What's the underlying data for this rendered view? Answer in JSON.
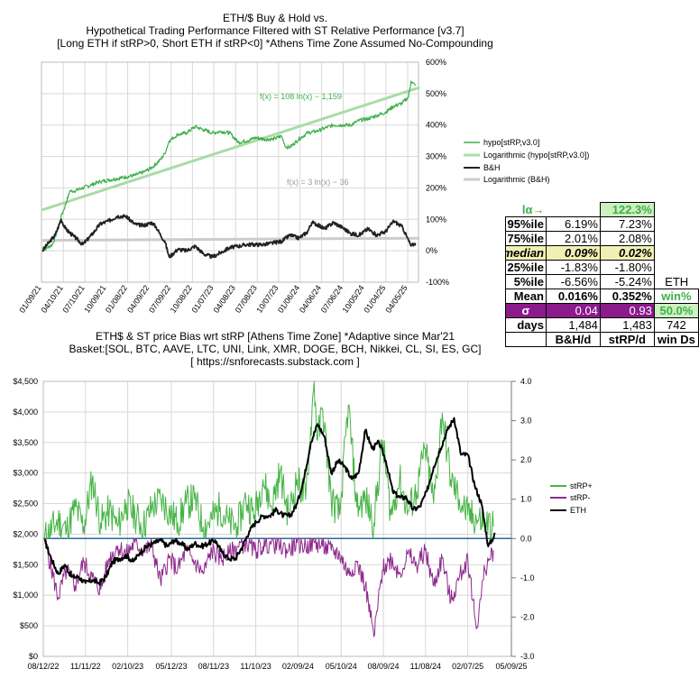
{
  "top_title": {
    "line1": "ETH/$ Buy & Hold vs.",
    "line2": "Hypothetical Trading Performance Filtered with ST Relative Performance [v3.7]",
    "line3": "[Long ETH if stRP>0, Short ETH if stRP<0] *Athens Time Zone Assumed No-Compounding"
  },
  "bottom_title": {
    "line1": "ETH$ & ST price Bias wrt stRP [Athens Time Zone]  *Adaptive since Mar'21",
    "line2": "Basket:[SOL, BTC, AAVE, LTC, UNI, Link, XMR, DOGE, BCH, Nikkei, CL, SI, ES, GC]",
    "line3": "[ https://snforecasts.substack.com ]"
  },
  "colors": {
    "hypo": "#3cb04a",
    "hypo_trend": "#a8dca8",
    "bh": "#222222",
    "bh_trend": "#cccccc",
    "strp_plus": "#46b446",
    "strp_minus": "#8e2a8e",
    "eth": "#000000",
    "zero_line": "#2a6b9a",
    "grid": "#d8d8d8"
  },
  "chart_data": [
    {
      "type": "line",
      "title": "Hypothetical Trading Performance vs ETH Buy & Hold",
      "x_tick_labels": [
        "01/09/21",
        "04/10/21",
        "07/10/21",
        "10/09/21",
        "01/08/22",
        "04/09/22",
        "07/09/22",
        "10/08/22",
        "01/07/23",
        "04/08/23",
        "07/08/23",
        "10/07/23",
        "01/06/24",
        "04/06/24",
        "07/06/24",
        "10/05/24",
        "01/04/25",
        "04/05/25"
      ],
      "y_tick_labels": [
        "600%",
        "500%",
        "400%",
        "300%",
        "200%",
        "100%",
        "0%",
        "-100%"
      ],
      "ylim": [
        -100,
        600
      ],
      "x_range": [
        "01/09/21",
        "05/20/25"
      ],
      "y_unit": "%",
      "series": [
        {
          "name": "hypo[stRP,v3.0]",
          "x_years": [
            2021.03,
            2021.15,
            2021.2,
            2021.25,
            2021.28,
            2021.35,
            2021.4,
            2021.5,
            2021.6,
            2021.7,
            2021.8,
            2021.9,
            2022.0,
            2022.1,
            2022.2,
            2022.3,
            2022.4,
            2022.45,
            2022.5,
            2022.55,
            2022.6,
            2022.7,
            2022.8,
            2022.9,
            2023.0,
            2023.1,
            2023.2,
            2023.3,
            2023.4,
            2023.5,
            2023.6,
            2023.7,
            2023.8,
            2023.85,
            2023.9,
            2024.0,
            2024.1,
            2024.2,
            2024.3,
            2024.4,
            2024.5,
            2024.6,
            2024.7,
            2024.8,
            2024.9,
            2025.0,
            2025.1,
            2025.2,
            2025.27,
            2025.3,
            2025.35
          ],
          "values": [
            0,
            20,
            60,
            110,
            130,
            190,
            190,
            200,
            210,
            220,
            225,
            230,
            235,
            240,
            250,
            265,
            290,
            310,
            350,
            360,
            370,
            375,
            395,
            385,
            375,
            380,
            375,
            345,
            350,
            360,
            355,
            355,
            365,
            330,
            330,
            355,
            375,
            380,
            390,
            400,
            400,
            400,
            415,
            420,
            430,
            440,
            460,
            470,
            490,
            540,
            525
          ]
        },
        {
          "name": "Logarithmic (hypo[stRP,v3.0])",
          "equation": "f(x) = 108 ln(x) − 1,159",
          "x_years": [
            2021.03,
            2025.4
          ],
          "values": [
            130,
            520
          ]
        },
        {
          "name": "B&H",
          "x_years": [
            2021.03,
            2021.12,
            2021.18,
            2021.25,
            2021.3,
            2021.4,
            2021.5,
            2021.6,
            2021.7,
            2021.8,
            2021.9,
            2022.0,
            2022.1,
            2022.2,
            2022.3,
            2022.35,
            2022.4,
            2022.45,
            2022.5,
            2022.6,
            2022.7,
            2022.8,
            2022.9,
            2023.0,
            2023.2,
            2023.4,
            2023.6,
            2023.8,
            2023.9,
            2024.0,
            2024.1,
            2024.15,
            2024.2,
            2024.3,
            2024.4,
            2024.5,
            2024.6,
            2024.7,
            2024.8,
            2024.9,
            2025.0,
            2025.1,
            2025.2,
            2025.25,
            2025.3,
            2025.35
          ],
          "values": [
            0,
            30,
            50,
            100,
            70,
            45,
            20,
            50,
            85,
            95,
            110,
            110,
            85,
            80,
            90,
            75,
            50,
            30,
            -20,
            5,
            0,
            15,
            -10,
            -20,
            10,
            20,
            20,
            30,
            50,
            40,
            60,
            90,
            85,
            70,
            90,
            75,
            55,
            50,
            70,
            50,
            60,
            95,
            75,
            45,
            15,
            25
          ]
        },
        {
          "name": "Logarithmic (B&H)",
          "equation": "f(x) = 3 ln(x) − 36",
          "x_years": [
            2021.03,
            2025.4
          ],
          "values": [
            33,
            40
          ]
        }
      ]
    },
    {
      "type": "line",
      "title": "ETH$ & ST price Bias wrt stRP",
      "x_tick_labels": [
        "08/12/22",
        "11/11/22",
        "02/10/23",
        "05/12/23",
        "08/11/23",
        "11/10/23",
        "02/09/24",
        "05/10/24",
        "08/09/24",
        "11/08/24",
        "02/07/25",
        "05/09/25"
      ],
      "y_left_tick_labels": [
        "$4,500",
        "$4,000",
        "$3,500",
        "$3,000",
        "$2,500",
        "$2,000",
        "$1,500",
        "$1,000",
        "$500",
        "$0"
      ],
      "y_right_tick_labels": [
        "4.0",
        "3.0",
        "2.0",
        "1.0",
        "0.0",
        "-1.0",
        "-2.0",
        "-3.0"
      ],
      "y_left_range": [
        0,
        4500
      ],
      "y_right_range": [
        -3,
        4
      ],
      "x_range": [
        "08/12/22",
        "05/09/25"
      ],
      "series": [
        {
          "name": "stRP+",
          "axis": "right",
          "x_years": [
            2022.62,
            2022.7,
            2022.75,
            2022.8,
            2022.85,
            2022.9,
            2022.95,
            2023.0,
            2023.05,
            2023.1,
            2023.15,
            2023.2,
            2023.25,
            2023.3,
            2023.35,
            2023.4,
            2023.45,
            2023.5,
            2023.55,
            2023.6,
            2023.65,
            2023.7,
            2023.75,
            2023.8,
            2023.85,
            2023.9,
            2023.95,
            2024.0,
            2024.05,
            2024.1,
            2024.15,
            2024.2,
            2024.22,
            2024.25,
            2024.3,
            2024.35,
            2024.4,
            2024.45,
            2024.5,
            2024.55,
            2024.6,
            2024.65,
            2024.7,
            2024.75,
            2024.8,
            2024.85,
            2024.9,
            2024.95,
            2025.0,
            2025.05,
            2025.1,
            2025.15,
            2025.2,
            2025.25
          ],
          "values": [
            0.0,
            0.45,
            0.2,
            0.8,
            0.3,
            1.5,
            0.4,
            0.7,
            0.3,
            0.9,
            0.6,
            0.3,
            0.8,
            1.0,
            0.7,
            0.4,
            0.9,
            1.0,
            0.3,
            0.5,
            0.8,
            0.4,
            0.3,
            1.0,
            0.6,
            1.5,
            0.8,
            1.7,
            0.6,
            1.5,
            1.0,
            4.0,
            2.5,
            3.3,
            1.0,
            0.6,
            3.4,
            0.8,
            1.0,
            0.4,
            2.5,
            0.6,
            1.5,
            0.7,
            1.2,
            2.3,
            0.9,
            3.2,
            1.5,
            1.0,
            0.6,
            0.5,
            0.4,
            0.3
          ]
        },
        {
          "name": "stRP-",
          "axis": "right",
          "x_years": [
            2022.62,
            2022.7,
            2022.75,
            2022.8,
            2022.85,
            2022.9,
            2022.95,
            2023.0,
            2023.05,
            2023.1,
            2023.15,
            2023.2,
            2023.25,
            2023.3,
            2023.35,
            2023.4,
            2023.45,
            2023.5,
            2023.55,
            2023.6,
            2023.65,
            2023.7,
            2023.75,
            2023.8,
            2023.85,
            2023.9,
            2023.95,
            2024.0,
            2024.05,
            2024.1,
            2024.15,
            2024.2,
            2024.25,
            2024.3,
            2024.35,
            2024.4,
            2024.45,
            2024.5,
            2024.55,
            2024.6,
            2024.65,
            2024.7,
            2024.75,
            2024.8,
            2024.85,
            2024.9,
            2024.95,
            2025.0,
            2025.05,
            2025.1,
            2025.15,
            2025.2,
            2025.25
          ],
          "values": [
            0.0,
            -1.5,
            -0.8,
            -1.2,
            -0.6,
            -1.0,
            -1.3,
            -0.5,
            -0.2,
            -0.4,
            -0.1,
            -0.3,
            -0.2,
            -1.1,
            -0.5,
            -0.8,
            -0.3,
            -0.6,
            -0.9,
            -0.3,
            -0.5,
            -0.4,
            -0.2,
            -0.1,
            -0.3,
            -0.2,
            -0.1,
            -0.2,
            -0.3,
            -0.1,
            -0.2,
            -0.1,
            -0.2,
            -0.3,
            -0.4,
            -0.9,
            -0.6,
            -1.2,
            -2.5,
            -0.8,
            -0.5,
            -0.9,
            -0.4,
            -0.7,
            -0.3,
            -1.2,
            -0.5,
            -1.6,
            -1.0,
            -0.5,
            -2.3,
            -0.8,
            -0.3
          ]
        },
        {
          "name": "ETH",
          "axis": "left",
          "x_years": [
            2022.62,
            2022.66,
            2022.7,
            2022.74,
            2022.78,
            2022.82,
            2022.86,
            2022.9,
            2022.94,
            2022.98,
            2023.02,
            2023.06,
            2023.1,
            2023.14,
            2023.18,
            2023.22,
            2023.26,
            2023.3,
            2023.34,
            2023.38,
            2023.42,
            2023.46,
            2023.5,
            2023.54,
            2023.58,
            2023.62,
            2023.66,
            2023.7,
            2023.74,
            2023.78,
            2023.82,
            2023.86,
            2023.9,
            2023.94,
            2023.98,
            2024.02,
            2024.06,
            2024.1,
            2024.14,
            2024.18,
            2024.22,
            2024.26,
            2024.3,
            2024.34,
            2024.38,
            2024.42,
            2024.46,
            2024.5,
            2024.54,
            2024.58,
            2024.62,
            2024.66,
            2024.7,
            2024.74,
            2024.78,
            2024.82,
            2024.86,
            2024.9,
            2024.94,
            2024.98,
            2025.02,
            2025.06,
            2025.1,
            2025.14,
            2025.18,
            2025.22,
            2025.26
          ],
          "values": [
            1900,
            1600,
            1350,
            1500,
            1300,
            1300,
            1200,
            1250,
            1200,
            1300,
            1550,
            1600,
            1650,
            1550,
            1700,
            1800,
            1850,
            1900,
            1800,
            1900,
            1850,
            1750,
            1850,
            1800,
            1850,
            1900,
            1700,
            1600,
            1600,
            1800,
            2050,
            2200,
            2300,
            2300,
            2400,
            2300,
            2300,
            2500,
            2900,
            3500,
            3800,
            3600,
            3000,
            3200,
            3100,
            2900,
            3000,
            3700,
            3400,
            3500,
            3200,
            2700,
            2600,
            2600,
            2400,
            2450,
            2700,
            3100,
            3400,
            3700,
            3900,
            3300,
            3300,
            2800,
            2500,
            1800,
            2000
          ]
        }
      ]
    }
  ],
  "stats_table": {
    "rows": [
      {
        "label": "lα→",
        "v1": "",
        "v2": "122.3%",
        "v3": ""
      },
      {
        "label": "95%ile",
        "v1": "6.19%",
        "v2": "7.23%",
        "v3": ""
      },
      {
        "label": "75%ile",
        "v1": "2.01%",
        "v2": "2.08%",
        "v3": ""
      },
      {
        "label": "median",
        "v1": "0.09%",
        "v2": "0.02%",
        "v3": ""
      },
      {
        "label": "25%ile",
        "v1": "-1.83%",
        "v2": "-1.80%",
        "v3": ""
      },
      {
        "label": "5%ile",
        "v1": "-6.56%",
        "v2": "-5.24%",
        "v3": "ETH"
      },
      {
        "label": "Mean",
        "v1": "0.016%",
        "v2": "0.352%",
        "v3": "win%"
      },
      {
        "label": "σ",
        "v1": "0.04",
        "v2": "0.93",
        "v3": "50.0%"
      },
      {
        "label": "days",
        "v1": "1,484",
        "v2": "1,483",
        "v3": "742"
      },
      {
        "label": "",
        "v1": "B&H/d",
        "v2": "stRP/d",
        "v3": "win Ds"
      }
    ]
  }
}
